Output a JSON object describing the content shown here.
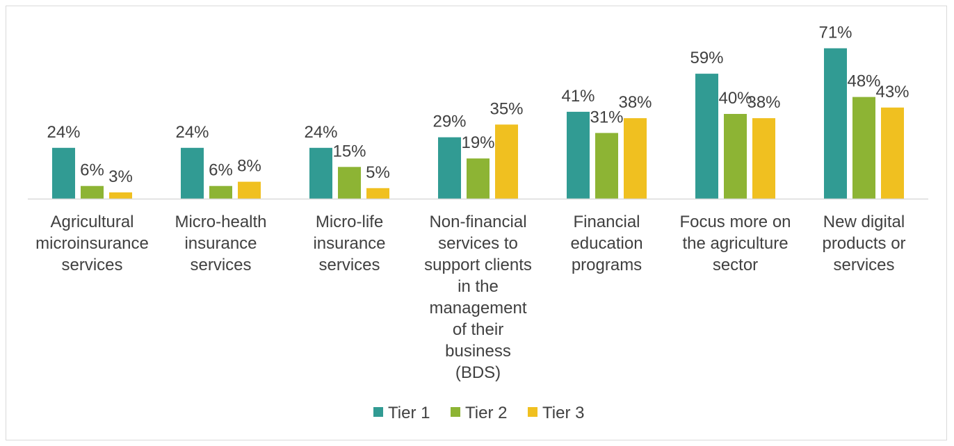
{
  "chart_data": {
    "type": "bar",
    "title": "",
    "xlabel": "",
    "ylabel": "",
    "ylim": [
      0,
      0.75
    ],
    "grid": false,
    "legend_position": "bottom",
    "value_format": "percent",
    "categories": [
      [
        "Agricultural",
        "microinsurance",
        "services"
      ],
      [
        "Micro-health",
        "insurance",
        "services"
      ],
      [
        "Micro-life",
        "insurance",
        "services"
      ],
      [
        "Non-financial",
        "services to",
        "support clients",
        "in the",
        "management",
        "of their",
        "business",
        "(BDS)"
      ],
      [
        "Financial",
        "education",
        "programs"
      ],
      [
        "Focus more on",
        "the agriculture",
        "sector"
      ],
      [
        "New digital",
        "products or",
        "services"
      ]
    ],
    "series": [
      {
        "name": "Tier 1",
        "color": "#319b93",
        "values": [
          0.24,
          0.24,
          0.24,
          0.29,
          0.41,
          0.59,
          0.71
        ],
        "labels": [
          "24%",
          "24%",
          "24%",
          "29%",
          "41%",
          "59%",
          "71%"
        ]
      },
      {
        "name": "Tier 2",
        "color": "#8db434",
        "values": [
          0.06,
          0.06,
          0.15,
          0.19,
          0.31,
          0.4,
          0.48
        ],
        "labels": [
          "6%",
          "6%",
          "15%",
          "19%",
          "31%",
          "40%",
          "48%"
        ]
      },
      {
        "name": "Tier 3",
        "color": "#f0c020",
        "values": [
          0.03,
          0.08,
          0.05,
          0.35,
          0.38,
          0.38,
          0.43
        ],
        "labels": [
          "3%",
          "8%",
          "5%",
          "35%",
          "38%",
          "38%",
          "43%"
        ]
      }
    ],
    "axis_line_color": "#d9d9d9"
  }
}
